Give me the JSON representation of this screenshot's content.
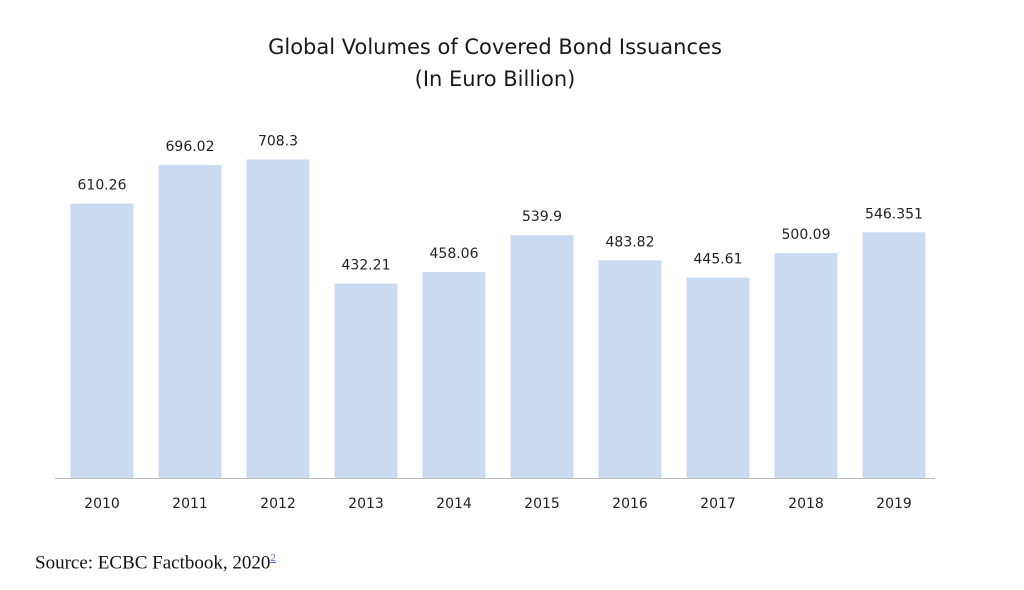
{
  "chart_data": {
    "type": "bar",
    "title": "Global Volumes of Covered Bond Issuances",
    "subtitle": "(In Euro Billion)",
    "categories": [
      "2010",
      "2011",
      "2012",
      "2013",
      "2014",
      "2015",
      "2016",
      "2017",
      "2018",
      "2019"
    ],
    "values": [
      610.26,
      696.02,
      708.3,
      432.21,
      458.06,
      539.9,
      483.82,
      445.61,
      500.09,
      546.351
    ],
    "value_labels": [
      "610.26",
      "696.02",
      "708.3",
      "432.21",
      "458.06",
      "539.9",
      "483.82",
      "445.61",
      "500.09",
      "546.351"
    ],
    "xlabel": "",
    "ylabel": "",
    "ylim": [
      0,
      780
    ],
    "grid": false,
    "legend": "none",
    "bar_color": "#c9daf1"
  },
  "source": {
    "text": "Source: ECBC Factbook, 2020",
    "footnote": "2"
  }
}
